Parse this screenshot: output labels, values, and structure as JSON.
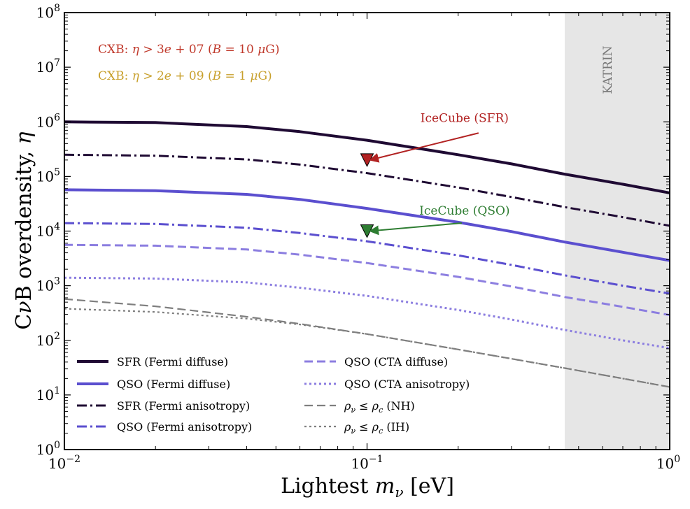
{
  "chart_data": {
    "type": "line",
    "xscale": "log",
    "yscale": "log",
    "xlim": [
      0.01,
      1
    ],
    "ylim": [
      1,
      100000000
    ],
    "xlabel": "Lightest m_ν [eV]",
    "ylabel": "CνB overdensity, η",
    "x_ticks": [
      0.01,
      0.1,
      1
    ],
    "x_tick_labels": [
      "10^-2",
      "10^-1",
      "10^0"
    ],
    "y_ticks": [
      1,
      10,
      100,
      1000,
      10000,
      100000,
      1000000,
      10000000,
      100000000
    ],
    "y_tick_labels": [
      "10^0",
      "10^1",
      "10^2",
      "10^3",
      "10^4",
      "10^5",
      "10^6",
      "10^7",
      "10^8"
    ],
    "shaded_region": {
      "label": "KATRIN",
      "x_from": 0.45,
      "x_to": 1,
      "color": "#e6e6e6"
    },
    "series": [
      {
        "name": "SFR (Fermi diffuse)",
        "color": "#1f0a33",
        "style": "solid",
        "width": "thick",
        "x": [
          0.01,
          0.02,
          0.04,
          0.06,
          0.1,
          0.2,
          0.3,
          0.45,
          0.7,
          1.0
        ],
        "y": [
          1000000,
          970000,
          820000,
          660000,
          460000,
          250000,
          170000,
          110000,
          72000,
          50000
        ]
      },
      {
        "name": "QSO (Fermi diffuse)",
        "color": "#5b4fcf",
        "style": "solid",
        "width": "thick",
        "x": [
          0.01,
          0.02,
          0.04,
          0.06,
          0.1,
          0.2,
          0.3,
          0.45,
          0.7,
          1.0
        ],
        "y": [
          57000,
          55000,
          47000,
          38000,
          26000,
          14500,
          9800,
          6300,
          4100,
          2900
        ]
      },
      {
        "name": "SFR (Fermi anisotropy)",
        "color": "#1f0a33",
        "style": "dashdot",
        "width": "medium",
        "x": [
          0.01,
          0.02,
          0.04,
          0.06,
          0.1,
          0.2,
          0.3,
          0.45,
          0.7,
          1.0
        ],
        "y": [
          250000,
          240000,
          205000,
          165000,
          115000,
          63000,
          42000,
          27500,
          18000,
          12500
        ]
      },
      {
        "name": "QSO (Fermi anisotropy)",
        "color": "#5b4fcf",
        "style": "dashdot",
        "width": "medium",
        "x": [
          0.01,
          0.02,
          0.04,
          0.06,
          0.1,
          0.2,
          0.3,
          0.45,
          0.7,
          1.0
        ],
        "y": [
          14000,
          13500,
          11500,
          9200,
          6500,
          3600,
          2400,
          1550,
          1000,
          720
        ]
      },
      {
        "name": "QSO (CTA diffuse)",
        "color": "#8c7ee0",
        "style": "dashed",
        "width": "medium",
        "x": [
          0.01,
          0.02,
          0.04,
          0.06,
          0.1,
          0.2,
          0.3,
          0.45,
          0.7,
          1.0
        ],
        "y": [
          5600,
          5400,
          4600,
          3700,
          2600,
          1450,
          970,
          620,
          410,
          290
        ]
      },
      {
        "name": "QSO (CTA anisotropy)",
        "color": "#8c7ee0",
        "style": "dotted",
        "width": "medium",
        "x": [
          0.01,
          0.02,
          0.04,
          0.06,
          0.1,
          0.2,
          0.3,
          0.45,
          0.7,
          1.0
        ],
        "y": [
          1400,
          1350,
          1150,
          920,
          650,
          360,
          240,
          155,
          100,
          72
        ]
      },
      {
        "name": "ρ_ν ≤ ρ_c (NH)",
        "color": "#7f7f7f",
        "style": "dashed",
        "width": "thin",
        "x": [
          0.01,
          0.02,
          0.04,
          0.06,
          0.1,
          0.2,
          0.3,
          0.45,
          0.7,
          1.0
        ],
        "y": [
          570,
          420,
          270,
          200,
          130,
          68,
          46,
          31,
          20,
          14
        ]
      },
      {
        "name": "ρ_ν ≤ ρ_c (IH)",
        "color": "#7f7f7f",
        "style": "dotted",
        "width": "thin",
        "x": [
          0.01,
          0.02,
          0.04,
          0.06,
          0.1,
          0.2,
          0.3,
          0.45,
          0.7,
          1.0
        ],
        "y": [
          380,
          330,
          250,
          195,
          130,
          68,
          46,
          31,
          20,
          14
        ]
      }
    ],
    "markers": [
      {
        "name": "IceCube (SFR)",
        "x": 0.1,
        "y": 200000,
        "color": "#b22222",
        "shape": "down-triangle"
      },
      {
        "name": "IceCube (QSO)",
        "x": 0.1,
        "y": 10000,
        "color": "#2e7d32",
        "shape": "down-triangle"
      }
    ],
    "annotations": [
      {
        "text": "IceCube (SFR)",
        "x": 0.21,
        "y": 1000000,
        "color": "#b22222",
        "arrow_to": [
          0.1,
          200000
        ]
      },
      {
        "text": "IceCube (QSO)",
        "x": 0.21,
        "y": 20000,
        "color": "#2e7d32",
        "arrow_to": [
          0.1,
          10000
        ]
      },
      {
        "text": "CXB: η > 3e+07 (B = 10 μG)",
        "color": "#c0392b",
        "corner": "top-left"
      },
      {
        "text": "CXB: η > 2e+09 (B = 1 μG)",
        "color": "#c8a02c",
        "corner": "top-left"
      }
    ],
    "legend": {
      "placement": "lower-left",
      "columns": 2
    }
  }
}
